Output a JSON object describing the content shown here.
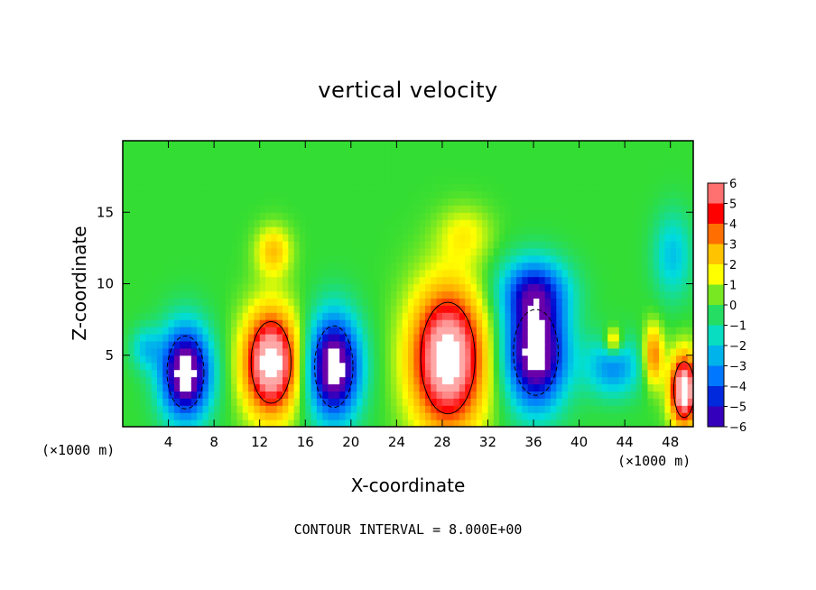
{
  "chart_data": {
    "type": "heatmap",
    "title": "vertical velocity",
    "xlabel": "X-coordinate",
    "ylabel": "Z-coordinate",
    "x_unit_label_left": "(×1000 m)",
    "x_unit_label_right": "(×1000 m)",
    "footer": "CONTOUR INTERVAL = 8.000E+00",
    "xlim": [
      0,
      50
    ],
    "ylim": [
      0,
      20
    ],
    "x_ticks": [
      "4",
      "8",
      "12",
      "16",
      "20",
      "24",
      "28",
      "32",
      "36",
      "40",
      "44",
      "48"
    ],
    "y_ticks": [
      "5",
      "10",
      "15"
    ],
    "colorbar_ticks": [
      "6",
      "5",
      "4",
      "3",
      "2",
      "1",
      "0",
      "−1",
      "−2",
      "−3",
      "−4",
      "−5",
      "−6"
    ],
    "colorbar_range": [
      -6,
      6
    ],
    "colors": {
      "strong_positive": "#ffa8a8",
      "positive": "#ff0000",
      "moderate_positive": "#ffa500",
      "weak_positive": "#ffff00",
      "zero": "#33dd33",
      "weak_negative": "#00dddd",
      "negative": "#0077ff",
      "strong_negative": "#0000cc",
      "most_negative": "#6a00aa"
    },
    "features": [
      {
        "kind": "updraft",
        "x": 13.0,
        "z": 4.5,
        "peak": 6,
        "rx": 2.5,
        "rz": 3.8
      },
      {
        "kind": "updraft",
        "x": 28.5,
        "z": 4.8,
        "peak": 6,
        "rx": 3.4,
        "rz": 5.2
      },
      {
        "kind": "updraft",
        "x": 49.2,
        "z": 2.6,
        "peak": 6,
        "rx": 1.3,
        "rz": 2.6
      },
      {
        "kind": "downdraft",
        "x": 5.5,
        "z": 3.8,
        "peak": -6,
        "rx": 2.3,
        "rz": 3.4
      },
      {
        "kind": "downdraft",
        "x": 18.5,
        "z": 4.2,
        "peak": -6,
        "rx": 2.4,
        "rz": 3.8
      },
      {
        "kind": "downdraft",
        "x": 36.2,
        "z": 5.2,
        "peak": -6,
        "rx": 2.8,
        "rz": 4.0
      },
      {
        "kind": "weak_down",
        "x": 36.0,
        "z": 9.6,
        "peak": -3.2,
        "rx": 3.2,
        "rz": 2.4
      },
      {
        "kind": "weak_down",
        "x": 43.0,
        "z": 4.2,
        "peak": -2.5,
        "rx": 2.6,
        "rz": 2.2
      },
      {
        "kind": "weak_up",
        "x": 13.2,
        "z": 12.3,
        "peak": 2.0,
        "rx": 1.6,
        "rz": 1.8
      },
      {
        "kind": "weak_up",
        "x": 43.0,
        "z": 6.0,
        "peak": 2.5,
        "rx": 0.8,
        "rz": 1.0
      },
      {
        "kind": "weak_up",
        "x": 46.5,
        "z": 5.0,
        "peak": 3.0,
        "rx": 0.9,
        "rz": 2.2
      },
      {
        "kind": "weak_down",
        "x": 48.2,
        "z": 12.0,
        "peak": -1.8,
        "rx": 1.8,
        "rz": 3.2
      },
      {
        "kind": "weak_down",
        "x": 2.0,
        "z": 5.5,
        "peak": -1.6,
        "rx": 1.4,
        "rz": 1.6
      },
      {
        "kind": "weak_up",
        "x": 30.0,
        "z": 13.5,
        "peak": 1.2,
        "rx": 2.4,
        "rz": 2.0
      }
    ]
  }
}
